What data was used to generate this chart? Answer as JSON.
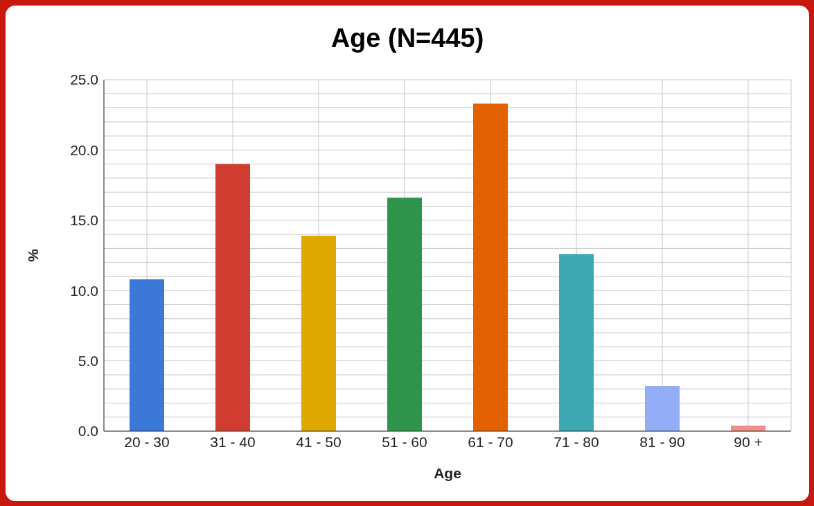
{
  "chart_data": {
    "type": "bar",
    "title": "Age (N=445)",
    "xlabel": "Age",
    "ylabel": "%",
    "categories": [
      "20 - 30",
      "31 - 40",
      "41 - 50",
      "51 - 60",
      "61 - 70",
      "71 - 80",
      "81 - 90",
      "90 +"
    ],
    "values": [
      10.8,
      19.0,
      13.9,
      16.6,
      23.3,
      12.6,
      3.2,
      0.4
    ],
    "colors": [
      "#3c78d8",
      "#d03c2f",
      "#dfa800",
      "#2e944b",
      "#e36100",
      "#3ca8b1",
      "#93aef7",
      "#ee9089"
    ],
    "ylim": [
      0,
      25
    ],
    "yticks": [
      {
        "value": 0,
        "label": "0.0"
      },
      {
        "value": 1,
        "label": null
      },
      {
        "value": 2,
        "label": null
      },
      {
        "value": 3,
        "label": null
      },
      {
        "value": 4,
        "label": null
      },
      {
        "value": 5,
        "label": "5.0"
      },
      {
        "value": 6,
        "label": null
      },
      {
        "value": 7,
        "label": null
      },
      {
        "value": 8,
        "label": null
      },
      {
        "value": 9,
        "label": null
      },
      {
        "value": 10,
        "label": "10.0"
      },
      {
        "value": 11,
        "label": null
      },
      {
        "value": 12,
        "label": null
      },
      {
        "value": 13,
        "label": null
      },
      {
        "value": 14,
        "label": null
      },
      {
        "value": 15,
        "label": "15.0"
      },
      {
        "value": 16,
        "label": null
      },
      {
        "value": 17,
        "label": null
      },
      {
        "value": 18,
        "label": null
      },
      {
        "value": 19,
        "label": null
      },
      {
        "value": 20,
        "label": "20.0"
      },
      {
        "value": 21,
        "label": null
      },
      {
        "value": 22,
        "label": null
      },
      {
        "value": 23,
        "label": null
      },
      {
        "value": 24,
        "label": null
      },
      {
        "value": 25,
        "label": "25.0"
      }
    ],
    "grid": true,
    "legend": false
  }
}
